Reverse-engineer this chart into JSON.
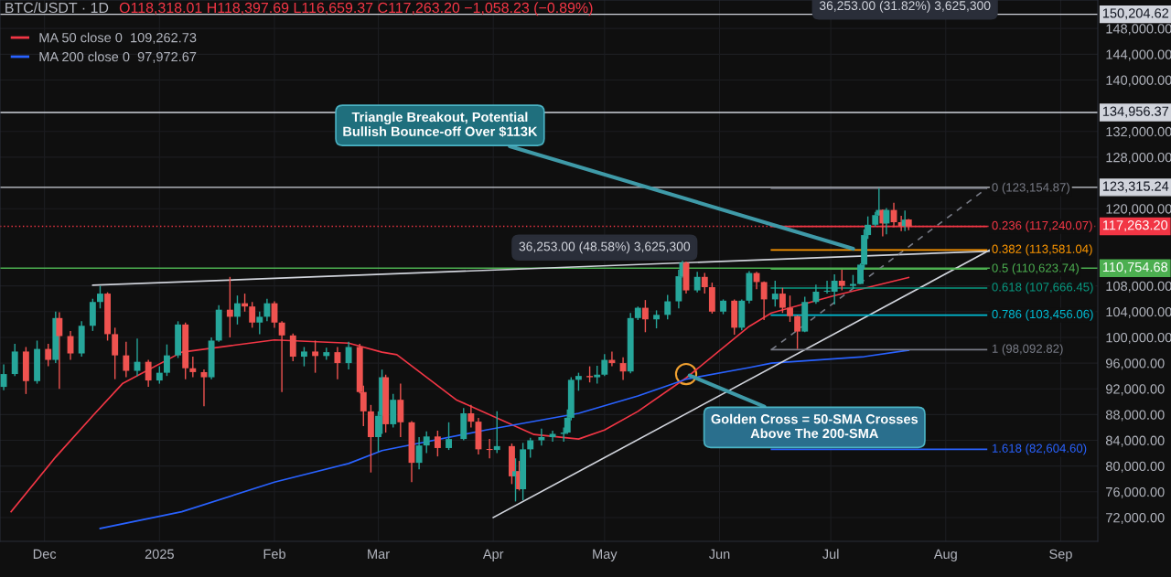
{
  "chart_data": {
    "type": "candlestick",
    "title": "BTC/USDT · 1D",
    "x": [
      "2024-11-20",
      "2024-11-23",
      "2024-11-26",
      "2024-11-29",
      "2024-12-02",
      "2024-12-04",
      "2024-12-05",
      "2024-12-08",
      "2024-12-11",
      "2024-12-14",
      "2024-12-16",
      "2024-12-18",
      "2024-12-20",
      "2024-12-23",
      "2024-12-26",
      "2024-12-29",
      "2025-01-01",
      "2025-01-03",
      "2025-01-06",
      "2025-01-08",
      "2025-01-10",
      "2025-01-13",
      "2025-01-15",
      "2025-01-17",
      "2025-01-20",
      "2025-01-22",
      "2025-01-24",
      "2025-01-26",
      "2025-01-28",
      "2025-01-30",
      "2025-02-01",
      "2025-02-03",
      "2025-02-06",
      "2025-02-09",
      "2025-02-12",
      "2025-02-15",
      "2025-02-18",
      "2025-02-21",
      "2025-02-24",
      "2025-02-25",
      "2025-02-27",
      "2025-03-01",
      "2025-03-02",
      "2025-03-03",
      "2025-03-05",
      "2025-03-07",
      "2025-03-10",
      "2025-03-12",
      "2025-03-14",
      "2025-03-17",
      "2025-03-20",
      "2025-03-24",
      "2025-03-26",
      "2025-03-28",
      "2025-03-31",
      "2025-04-02",
      "2025-04-06",
      "2025-04-07",
      "2025-04-08",
      "2025-04-09",
      "2025-04-11",
      "2025-04-14",
      "2025-04-17",
      "2025-04-20",
      "2025-04-21",
      "2025-04-22",
      "2025-04-24",
      "2025-04-27",
      "2025-04-29",
      "2025-05-01",
      "2025-05-03",
      "2025-05-06",
      "2025-05-08",
      "2025-05-10",
      "2025-05-12",
      "2025-05-15",
      "2025-05-18",
      "2025-05-21",
      "2025-05-22",
      "2025-05-23",
      "2025-05-26",
      "2025-05-28",
      "2025-05-30",
      "2025-06-02",
      "2025-06-05",
      "2025-06-07",
      "2025-06-09",
      "2025-06-11",
      "2025-06-13",
      "2025-06-16",
      "2025-06-18",
      "2025-06-20",
      "2025-06-22",
      "2025-06-24",
      "2025-06-27",
      "2025-06-30",
      "2025-07-02",
      "2025-07-04",
      "2025-07-07",
      "2025-07-09",
      "2025-07-10",
      "2025-07-11",
      "2025-07-13",
      "2025-07-14",
      "2025-07-15",
      "2025-07-16",
      "2025-07-18",
      "2025-07-20",
      "2025-07-21",
      "2025-07-22"
    ],
    "ohlc": [
      [
        92300,
        95800,
        91800,
        94300
      ],
      [
        94300,
        99000,
        94000,
        97800
      ],
      [
        97800,
        98500,
        91200,
        93200
      ],
      [
        93200,
        99500,
        92800,
        98200
      ],
      [
        98200,
        99000,
        95500,
        96500
      ],
      [
        96500,
        104000,
        96000,
        103000
      ],
      [
        103000,
        103900,
        92000,
        100200
      ],
      [
        100200,
        101000,
        96500,
        97500
      ],
      [
        97500,
        102500,
        97000,
        101800
      ],
      [
        101800,
        106000,
        101000,
        105500
      ],
      [
        105500,
        108000,
        104500,
        106800
      ],
      [
        106800,
        107000,
        99500,
        100500
      ],
      [
        100500,
        101500,
        93500,
        97200
      ],
      [
        97200,
        99300,
        93800,
        94800
      ],
      [
        94800,
        99800,
        94000,
        96200
      ],
      [
        96200,
        96500,
        92300,
        93300
      ],
      [
        93300,
        95500,
        92800,
        94500
      ],
      [
        94500,
        98900,
        94000,
        97200
      ],
      [
        97200,
        102500,
        96800,
        102000
      ],
      [
        102000,
        102300,
        93500,
        95200
      ],
      [
        95200,
        97000,
        93800,
        94600
      ],
      [
        94600,
        95000,
        89300,
        93800
      ],
      [
        93800,
        100000,
        93500,
        99500
      ],
      [
        99500,
        105000,
        99300,
        104300
      ],
      [
        104300,
        109400,
        100000,
        103200
      ],
      [
        103200,
        106500,
        102000,
        105300
      ],
      [
        105300,
        106800,
        104000,
        104800
      ],
      [
        104800,
        105500,
        101500,
        102300
      ],
      [
        102300,
        104000,
        100500,
        103200
      ],
      [
        103200,
        106000,
        102500,
        105300
      ],
      [
        105300,
        105600,
        101500,
        102300
      ],
      [
        102300,
        102500,
        91500,
        100300
      ],
      [
        100300,
        100600,
        96300,
        97000
      ],
      [
        97000,
        98500,
        95500,
        97800
      ],
      [
        97800,
        99500,
        94500,
        97100
      ],
      [
        97100,
        98400,
        96500,
        97700
      ],
      [
        97700,
        98500,
        93500,
        96000
      ],
      [
        96000,
        99300,
        95000,
        98500
      ],
      [
        98500,
        99000,
        91300,
        91500
      ],
      [
        91500,
        92500,
        86200,
        88500
      ],
      [
        88500,
        89500,
        79000,
        84500
      ],
      [
        84500,
        88500,
        82200,
        87800
      ],
      [
        87800,
        95000,
        85000,
        93800
      ],
      [
        93800,
        94200,
        85200,
        86500
      ],
      [
        86500,
        91200,
        86000,
        90300
      ],
      [
        90300,
        92800,
        84500,
        86800
      ],
      [
        86800,
        87000,
        77500,
        80500
      ],
      [
        80500,
        84500,
        79500,
        83200
      ],
      [
        83200,
        85400,
        82000,
        84600
      ],
      [
        84600,
        85500,
        81500,
        82800
      ],
      [
        82800,
        86800,
        82500,
        84200
      ],
      [
        84200,
        89000,
        84000,
        88200
      ],
      [
        88200,
        89500,
        86000,
        86900
      ],
      [
        86900,
        87500,
        81800,
        82600
      ],
      [
        82600,
        84200,
        81200,
        82500
      ],
      [
        82500,
        88500,
        82000,
        83100
      ],
      [
        83100,
        83500,
        77200,
        78400
      ],
      [
        78400,
        81200,
        74500,
        79200
      ],
      [
        79200,
        80800,
        76200,
        76400
      ],
      [
        76400,
        83600,
        74700,
        82600
      ],
      [
        82600,
        84400,
        81300,
        84000
      ],
      [
        84000,
        85800,
        83200,
        84500
      ],
      [
        84500,
        85500,
        83800,
        85000
      ],
      [
        85000,
        86000,
        83800,
        85200
      ],
      [
        85200,
        88800,
        85000,
        87500
      ],
      [
        87500,
        93800,
        87100,
        93400
      ],
      [
        93400,
        94500,
        91700,
        94000
      ],
      [
        94000,
        95500,
        93000,
        93800
      ],
      [
        93800,
        95600,
        92800,
        94200
      ],
      [
        94200,
        97400,
        94000,
        96500
      ],
      [
        96500,
        97800,
        95500,
        96000
      ],
      [
        96000,
        96900,
        93400,
        94700
      ],
      [
        94700,
        103800,
        94400,
        103000
      ],
      [
        103000,
        104800,
        102700,
        104600
      ],
      [
        104600,
        105800,
        100800,
        102800
      ],
      [
        102800,
        104200,
        101400,
        103500
      ],
      [
        103500,
        106600,
        102800,
        105600
      ],
      [
        105600,
        110500,
        104500,
        109500
      ],
      [
        109500,
        111900,
        109300,
        111600
      ],
      [
        111600,
        111800,
        106800,
        107300
      ],
      [
        107300,
        110200,
        107000,
        109400
      ],
      [
        109400,
        110000,
        106800,
        107800
      ],
      [
        107800,
        108500,
        103700,
        104000
      ],
      [
        104000,
        105900,
        103600,
        105700
      ],
      [
        105700,
        105900,
        100400,
        101500
      ],
      [
        101500,
        105900,
        101100,
        105700
      ],
      [
        105700,
        110300,
        105300,
        110000
      ],
      [
        110000,
        110200,
        107500,
        108600
      ],
      [
        108600,
        108700,
        102700,
        105900
      ],
      [
        105900,
        108800,
        104800,
        106800
      ],
      [
        106800,
        107700,
        103800,
        104600
      ],
      [
        104600,
        106500,
        102400,
        103300
      ],
      [
        103300,
        103400,
        98200,
        100900
      ],
      [
        100900,
        106300,
        100800,
        105500
      ],
      [
        105500,
        108200,
        105200,
        107100
      ],
      [
        107100,
        108800,
        106800,
        107100
      ],
      [
        107100,
        109800,
        105100,
        108800
      ],
      [
        108800,
        110500,
        107300,
        108000
      ],
      [
        108000,
        109700,
        107500,
        108300
      ],
      [
        108300,
        111500,
        108300,
        111300
      ],
      [
        111300,
        116800,
        110600,
        115900
      ],
      [
        115900,
        118800,
        115300,
        117500
      ],
      [
        117500,
        119500,
        117200,
        119000
      ],
      [
        119000,
        123200,
        118900,
        119800
      ],
      [
        119800,
        119900,
        115700,
        117700
      ],
      [
        117700,
        120100,
        116000,
        119800
      ],
      [
        119800,
        120900,
        117100,
        117900
      ],
      [
        117900,
        118900,
        116500,
        117300
      ],
      [
        117300,
        119700,
        116500,
        118300
      ],
      [
        118318.01,
        118397.69,
        116659.37,
        117263.2
      ]
    ],
    "series": [
      {
        "type": "line",
        "name": "MA 50 close 0  109,262.73",
        "color": "#f23645",
        "x": [
          "2024-11-22",
          "2024-12-04",
          "2024-12-14",
          "2024-12-22",
          "2025-01-07",
          "2025-01-20",
          "2025-02-01",
          "2025-02-21",
          "2025-03-02",
          "2025-03-06",
          "2025-03-22",
          "2025-04-12",
          "2025-04-24",
          "2025-05-01",
          "2025-05-10",
          "2025-05-23",
          "2025-06-09",
          "2025-06-15",
          "2025-07-02",
          "2025-07-22"
        ],
        "values": [
          72900,
          81400,
          87800,
          92800,
          97700,
          98700,
          99600,
          99100,
          97700,
          97300,
          90300,
          84900,
          84200,
          85600,
          88500,
          93700,
          101700,
          103800,
          106500,
          109300
        ]
      },
      {
        "type": "line",
        "name": "MA 200 close 0  97,972.67",
        "color": "#2962ff",
        "x": [
          "2024-12-16",
          "2025-01-07",
          "2025-02-01",
          "2025-02-21",
          "2025-03-02",
          "2025-03-30",
          "2025-04-24",
          "2025-05-10",
          "2025-05-23",
          "2025-06-09",
          "2025-06-15",
          "2025-07-10",
          "2025-07-22"
        ],
        "values": [
          70300,
          72900,
          77500,
          80400,
          82400,
          85600,
          88200,
          90900,
          93500,
          95300,
          96000,
          97000,
          98000
        ]
      },
      {
        "type": "line",
        "color": "#d1d4dc",
        "x": [
          "2024-12-14",
          "2025-08-13"
        ],
        "values": [
          108100,
          113400
        ]
      },
      {
        "type": "line",
        "color": "#d1d4dc",
        "x": [
          "2025-04-01",
          "2025-08-13"
        ],
        "values": [
          72000,
          113600
        ]
      },
      {
        "type": "line",
        "color": "#787b86",
        "line_style": "dashed",
        "x": [
          "2025-06-15",
          "2025-08-12"
        ],
        "values": [
          98092.82,
          123154.87
        ]
      },
      {
        "type": "line",
        "name": "0 (123,154.87)",
        "color": "#787b86",
        "x": [
          "2025-06-15",
          "2025-08-12"
        ],
        "values": [
          123154.87,
          123154.87
        ]
      },
      {
        "type": "line",
        "name": "0.236 (117,240.07)",
        "color": "#f23645",
        "x": [
          "2025-06-15",
          "2025-08-12"
        ],
        "values": [
          117240.07,
          117240.07
        ]
      },
      {
        "type": "line",
        "name": "0.382 (113,581.04)",
        "color": "#ff9800",
        "x": [
          "2025-06-15",
          "2025-08-12"
        ],
        "values": [
          113581.04,
          113581.04
        ]
      },
      {
        "type": "line",
        "name": "0.5 (110,623.74)",
        "color": "#4caf50",
        "x": [
          "2025-06-15",
          "2025-08-12"
        ],
        "values": [
          110623.74,
          110623.74
        ]
      },
      {
        "type": "line",
        "name": "0.618 (107,666.45)",
        "color": "#089981",
        "x": [
          "2025-06-15",
          "2025-08-12"
        ],
        "values": [
          107666.45,
          107666.45
        ]
      },
      {
        "type": "line",
        "name": "0.786 (103,456.06)",
        "color": "#00bcd4",
        "x": [
          "2025-06-15",
          "2025-08-12"
        ],
        "values": [
          103456.06,
          103456.06
        ]
      },
      {
        "type": "line",
        "name": "1 (98,092.82)",
        "color": "#787b86",
        "x": [
          "2025-06-15",
          "2025-08-12"
        ],
        "values": [
          98092.82,
          98092.82
        ]
      },
      {
        "type": "line",
        "name": "1.618 (82,604.60)",
        "color": "#2962ff",
        "x": [
          "2025-06-15",
          "2025-08-12"
        ],
        "values": [
          82604.6,
          82604.6
        ]
      }
    ],
    "ref_lines": [
      {
        "axis": "y",
        "value": 150204.62,
        "label": "150,204.62",
        "color": "#d1d4dc"
      },
      {
        "axis": "y",
        "value": 134956.37,
        "label": "134,956.37",
        "color": "#d1d4dc"
      },
      {
        "axis": "y",
        "value": 123315.24,
        "label": "123,315.24",
        "color": "#d1d4dc"
      },
      {
        "axis": "y",
        "value": 117263.2,
        "label": "117,263.20",
        "color": "#f23645",
        "line_style": "dotted"
      },
      {
        "axis": "y",
        "value": 110754.68,
        "label": "110,754.68",
        "color": "#4caf50"
      }
    ],
    "annotations": [
      "O118,318.01 H118,397.69 L116,659.37 C117,263.20 −1,058.23 (−0.89%)",
      {
        "text": "36,253.00 (48.58%) 3,625,300",
        "x": "2025-05-01",
        "y": 110800
      },
      {
        "text": "36,253.00 (31.82%) 3,625,300",
        "x": "2025-07-21",
        "y": 150204.62
      },
      {
        "text": "Triangle Breakout, Potential\nBullish Bounce-off Over $113K",
        "x": "2025-07-08",
        "y": 113600
      },
      {
        "text": "Golden Cross = 50-SMA Crosses\nAbove The 200-SMA",
        "x": "2025-05-23",
        "y": 94300
      }
    ],
    "xlim": [
      "2024-11-19",
      "2025-09-11"
    ],
    "xticks": [
      {
        "value": "2024-12-01",
        "label": "Dec"
      },
      {
        "value": "2025-01-01",
        "label": "2025"
      },
      {
        "value": "2025-02-01",
        "label": "Feb"
      },
      {
        "value": "2025-03-01",
        "label": "Mar"
      },
      {
        "value": "2025-04-01",
        "label": "Apr"
      },
      {
        "value": "2025-05-01",
        "label": "May"
      },
      {
        "value": "2025-06-01",
        "label": "Jun"
      },
      {
        "value": "2025-07-01",
        "label": "Jul"
      },
      {
        "value": "2025-08-01",
        "label": "Aug"
      },
      {
        "value": "2025-09-01",
        "label": "Sep"
      }
    ],
    "ylim": [
      68300,
      152430
    ],
    "yticks": [
      {
        "value": 72000,
        "label": "72,000.00"
      },
      {
        "value": 76000,
        "label": "76,000.00"
      },
      {
        "value": 80000,
        "label": "80,000.00"
      },
      {
        "value": 84000,
        "label": "84,000.00"
      },
      {
        "value": 88000,
        "label": "88,000.00"
      },
      {
        "value": 92000,
        "label": "92,000.00"
      },
      {
        "value": 96000,
        "label": "96,000.00"
      },
      {
        "value": 100000,
        "label": "100,000.00"
      },
      {
        "value": 104000,
        "label": "104,000.00"
      },
      {
        "value": 108000,
        "label": "108,000.00"
      },
      {
        "value": 120000,
        "label": "120,000.00"
      },
      {
        "value": 128000,
        "label": "128,000.00"
      },
      {
        "value": 132000,
        "label": "132,000.00"
      },
      {
        "value": 140000,
        "label": "140,000.00"
      },
      {
        "value": 144000,
        "label": "144,000.00"
      },
      {
        "value": 148000,
        "label": "148,000.00"
      }
    ],
    "grid": true,
    "legend": "top left"
  }
}
